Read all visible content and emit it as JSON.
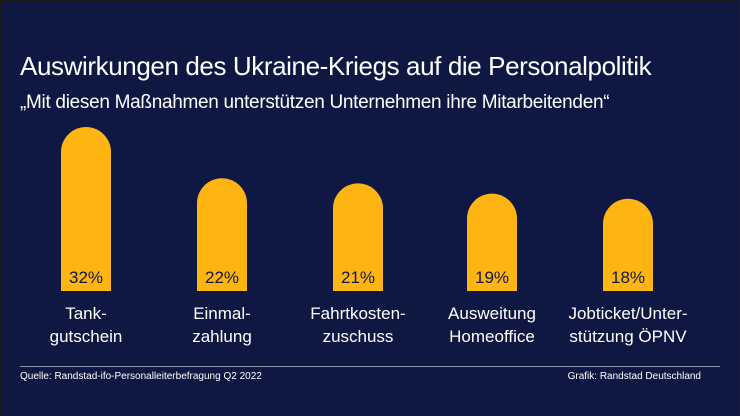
{
  "title": "Auswirkungen des Ukraine-Kriegs auf die Personalpolitik",
  "subtitle": "„Mit diesen Maßnahmen unterstützen Unternehmen ihre Mitarbeitenden“",
  "source": "Quelle: Randstad-ifo-Personalleiterbefragung Q2 2022",
  "credit": "Grafik: Randstad Deutschland",
  "colors": {
    "background": "#0f1843",
    "bar": "#ffb511",
    "text": "#ffffff"
  },
  "chart_data": {
    "type": "bar",
    "categories": [
      [
        "Tank-",
        "gutschein"
      ],
      [
        "Einmal-",
        "zahlung"
      ],
      [
        "Fahrtkosten-",
        "zuschuss"
      ],
      [
        "Ausweitung",
        "Homeoffice"
      ],
      [
        "Jobticket/Unter-",
        "stützung ÖPNV"
      ]
    ],
    "values": [
      32,
      22,
      21,
      19,
      18
    ],
    "value_labels": [
      "32%",
      "22%",
      "21%",
      "19%",
      "18%"
    ],
    "unit": "%",
    "ylim": [
      0,
      32
    ],
    "grid": false,
    "legend": "none"
  }
}
